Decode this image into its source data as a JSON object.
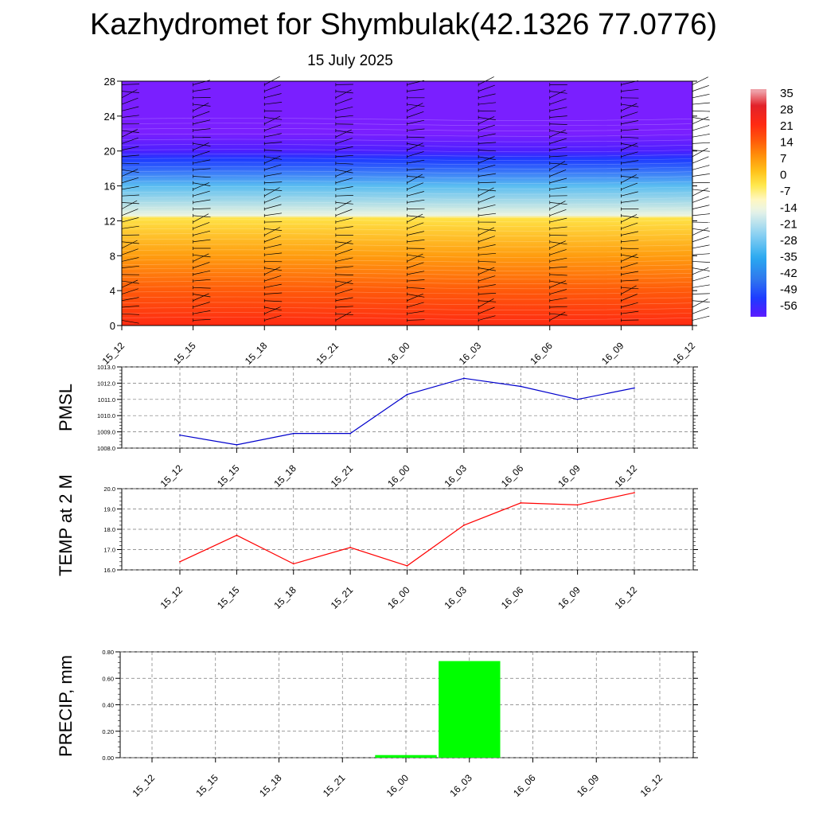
{
  "title": "Kazhydromet for Shymbulak(42.1326 77.0776)",
  "date": "15 July 2025",
  "time_labels": [
    "15_12",
    "15_15",
    "15_18",
    "15_21",
    "16_00",
    "16_03",
    "16_06",
    "16_09",
    "16_12"
  ],
  "colors": {
    "pmsl_line": "#0000cc",
    "temp_line": "#ff0000",
    "precip_bar": "#00ff00",
    "grid": "#888888"
  },
  "chart_data": [
    {
      "type": "heatmap",
      "name": "vertical-temperature-wind-cross-section",
      "x": [
        "15_12",
        "15_15",
        "15_18",
        "15_21",
        "16_00",
        "16_03",
        "16_06",
        "16_09",
        "16_12"
      ],
      "ylim": [
        0,
        28
      ],
      "yticks": [
        "0",
        "4",
        "8",
        "12",
        "16",
        "20",
        "24",
        "28"
      ],
      "colorbar": {
        "labels": [
          "35",
          "28",
          "21",
          "14",
          "7",
          "0",
          "-7",
          "-14",
          "-21",
          "-28",
          "-35",
          "-42",
          "-49",
          "-56"
        ],
        "range": [
          -60,
          37
        ]
      },
      "temperature_profile": [
        {
          "level": 0,
          "value": 22
        },
        {
          "level": 4,
          "value": 15
        },
        {
          "level": 8,
          "value": 7
        },
        {
          "level": 12.3,
          "value": -3
        },
        {
          "level": 12.6,
          "value": -14
        },
        {
          "level": 16,
          "value": -30
        },
        {
          "level": 19,
          "value": -52
        },
        {
          "level": 20,
          "value": -58
        },
        {
          "level": 22,
          "value": -63
        },
        {
          "level": 28,
          "value": -63
        }
      ]
    },
    {
      "type": "line",
      "ylabel": "PMSL",
      "categories": [
        "15_12",
        "15_15",
        "15_18",
        "15_21",
        "16_00",
        "16_03",
        "16_06",
        "16_09",
        "16_12"
      ],
      "values": [
        1008.8,
        1008.2,
        1008.9,
        1008.9,
        1011.3,
        1012.3,
        1011.8,
        1011.0,
        1011.7
      ],
      "ylim": [
        1008.0,
        1013.0
      ],
      "yticks": [
        "1008.0",
        "1009.0",
        "1010.0",
        "1011.0",
        "1012.0",
        "1013.0"
      ]
    },
    {
      "type": "line",
      "ylabel": "TEMP at 2 M",
      "categories": [
        "15_12",
        "15_15",
        "15_18",
        "15_21",
        "16_00",
        "16_03",
        "16_06",
        "16_09",
        "16_12"
      ],
      "values": [
        16.4,
        17.7,
        16.3,
        17.1,
        16.2,
        18.2,
        19.3,
        19.2,
        19.8
      ],
      "ylim": [
        16.0,
        20.0
      ],
      "yticks": [
        "16.0",
        "17.0",
        "18.0",
        "19.0",
        "20.0"
      ]
    },
    {
      "type": "bar",
      "ylabel": "PRECIP, mm",
      "categories": [
        "15_12",
        "15_15",
        "15_18",
        "15_21",
        "16_00",
        "16_03",
        "16_06",
        "16_09",
        "16_12"
      ],
      "values": [
        0,
        0,
        0,
        0,
        0.02,
        0.73,
        0,
        0,
        0
      ],
      "ylim": [
        0,
        0.8
      ],
      "yticks": [
        "0.00",
        "0.20",
        "0.40",
        "0.60",
        "0.80"
      ]
    }
  ]
}
